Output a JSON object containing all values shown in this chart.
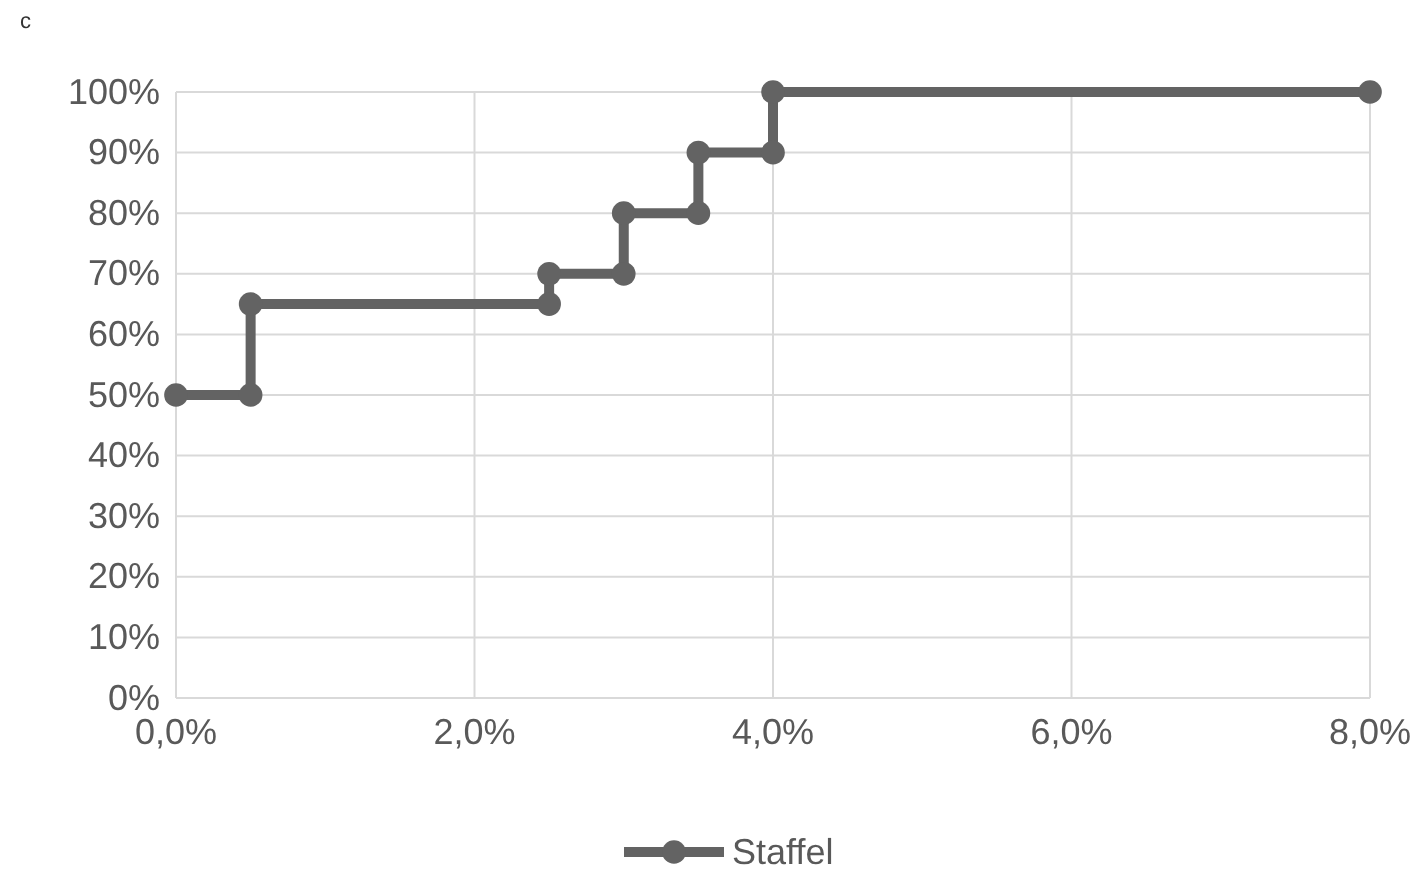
{
  "chart_data": {
    "type": "line",
    "title": "c",
    "x": [
      0,
      0.5,
      0.5,
      2.5,
      2.5,
      3,
      3,
      3.5,
      3.5,
      4,
      4,
      8
    ],
    "series": [
      {
        "name": "Staffel",
        "color": "#636363",
        "values": [
          50,
          50,
          65,
          65,
          70,
          70,
          80,
          80,
          90,
          90,
          100,
          100
        ]
      }
    ],
    "xlim": [
      0,
      8
    ],
    "xticks": [
      {
        "value": 0,
        "label": "0,0%"
      },
      {
        "value": 2,
        "label": "2,0%"
      },
      {
        "value": 4,
        "label": "4,0%"
      },
      {
        "value": 6,
        "label": "6,0%"
      },
      {
        "value": 8,
        "label": "8,0%"
      }
    ],
    "ylim": [
      0,
      100
    ],
    "yticks": [
      {
        "value": 0,
        "label": "0%"
      },
      {
        "value": 10,
        "label": "10%"
      },
      {
        "value": 20,
        "label": "20%"
      },
      {
        "value": 30,
        "label": "30%"
      },
      {
        "value": 40,
        "label": "40%"
      },
      {
        "value": 50,
        "label": "50%"
      },
      {
        "value": 60,
        "label": "60%"
      },
      {
        "value": 70,
        "label": "70%"
      },
      {
        "value": 80,
        "label": "80%"
      },
      {
        "value": 90,
        "label": "90%"
      },
      {
        "value": 100,
        "label": "100%"
      }
    ],
    "grid": true,
    "legend": "bottom",
    "marker": "circle",
    "line_style": "solid"
  }
}
